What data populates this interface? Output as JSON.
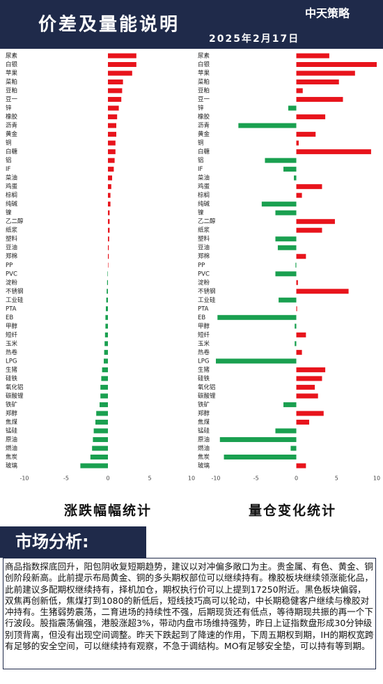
{
  "header": {
    "title": "价差及量能说明",
    "date": "2025年2月17日",
    "logo": "中天策略"
  },
  "chart_data": [
    {
      "type": "hbar",
      "title": "涨跌幅幅统计",
      "categories": [
        "尿素",
        "白银",
        "苹果",
        "菜粕",
        "豆粕",
        "豆一",
        "锌",
        "橡胶",
        "沥青",
        "黄金",
        "铜",
        "白糖",
        "铝",
        "IF",
        "菜油",
        "鸡蛋",
        "棕榈",
        "纯碱",
        "镍",
        "乙二醇",
        "纸浆",
        "塑料",
        "豆油",
        "郑棉",
        "PP",
        "PVC",
        "淀粉",
        "不锈钢",
        "工业硅",
        "PTA",
        "EB",
        "甲醇",
        "短纤",
        "玉米",
        "热卷",
        "LPG",
        "生猪",
        "硅铁",
        "氧化铝",
        "碳酸锂",
        "铁矿",
        "郑醇",
        "焦煤",
        "锰硅",
        "原油",
        "燃油",
        "焦炭",
        "玻璃"
      ],
      "values": [
        3.4,
        3.4,
        2.9,
        1.8,
        1.7,
        1.6,
        1.3,
        1.1,
        1.0,
        1.0,
        0.9,
        0.9,
        0.8,
        0.7,
        0.5,
        0.4,
        0.3,
        0.3,
        0.2,
        0.2,
        0.2,
        0.15,
        0.1,
        0.1,
        0.05,
        -0.05,
        -0.1,
        -0.15,
        -0.2,
        -0.25,
        -0.3,
        -0.3,
        -0.35,
        -0.4,
        -0.45,
        -0.5,
        -0.7,
        -0.8,
        -0.9,
        -0.9,
        -1.0,
        -1.4,
        -1.5,
        -1.7,
        -1.8,
        -1.9,
        -2.1,
        -3.3
      ],
      "positive_color": "#e8141c",
      "negative_color": "#1aa050",
      "xlim": [
        -10,
        10
      ],
      "xticks": [
        -10,
        -5,
        0,
        5,
        10
      ]
    },
    {
      "type": "hbar",
      "title": "量仓变化统计",
      "categories": [
        "尿素",
        "白银",
        "苹果",
        "菜粕",
        "豆粕",
        "豆一",
        "锌",
        "橡胶",
        "沥青",
        "黄金",
        "铜",
        "白糖",
        "铝",
        "IF",
        "菜油",
        "鸡蛋",
        "棕榈",
        "纯碱",
        "镍",
        "乙二醇",
        "纸浆",
        "塑料",
        "豆油",
        "郑棉",
        "PP",
        "PVC",
        "淀粉",
        "不锈钢",
        "工业硅",
        "PTA",
        "EB",
        "甲醇",
        "短纤",
        "玉米",
        "热卷",
        "LPG",
        "生猪",
        "硅铁",
        "氧化铝",
        "碳酸锂",
        "铁矿",
        "郑醇",
        "焦煤",
        "锰硅",
        "原油",
        "燃油",
        "焦炭",
        "玻璃"
      ],
      "values": [
        4.1,
        10,
        7.3,
        5.3,
        0.8,
        5.8,
        -1.0,
        3.6,
        -7.2,
        2.4,
        0.3,
        9.3,
        -3.9,
        -1.6,
        -0.3,
        3.2,
        0.7,
        -4.3,
        -2.6,
        4.8,
        3.2,
        -2.6,
        -2.3,
        1.2,
        -0.1,
        -2.6,
        0.2,
        6.5,
        -2.2,
        0.1,
        -9.8,
        -0.2,
        1.2,
        -0.2,
        0.7,
        -10,
        3.6,
        3.2,
        2.3,
        2.7,
        -1.6,
        3.4,
        1.6,
        -2.6,
        -9.5,
        -0.7,
        -9.0,
        1.2
      ],
      "positive_color": "#e8141c",
      "negative_color": "#1aa050",
      "xlim": [
        -10,
        10
      ],
      "xticks": [
        -10,
        -5,
        0,
        5,
        10
      ]
    }
  ],
  "analysis": {
    "heading": "市场分析:",
    "body": "商品指数探底回升，阳包阴收复短期趋势，建议以对冲偏多敞口为主。贵金属、有色、黄金、铜创阶段新高。此前提示布局黄金、铜的多头期权部位可以继续持有。橡胶板块继续领涨能化品，此前建议多配期权继续持有，择机加仓，期权执行价可以上提到17250附近。黑色板块偏弱，双焦再创新低，焦煤打到1080的新低后，短线技巧高可以轮动，中长期稳健客户继续与橡胶对冲持有。生猪弱势震荡，二育进场的持续性不强，后期现货还有低点，等待期现共振的再一个下行波段。股指震荡偏强，港股涨超3%，带动内盘市场维持强势，昨日上证指数盘形成30分钟级别顶背离，但没有出现空间调整。昨天下跌起到了降速的作用，下周五期权到期，IH的期权宽跨有足够的安全空间，可以继续持有观察，不急于调结构。MO有足够安全垫，可以持有等到期。"
  }
}
